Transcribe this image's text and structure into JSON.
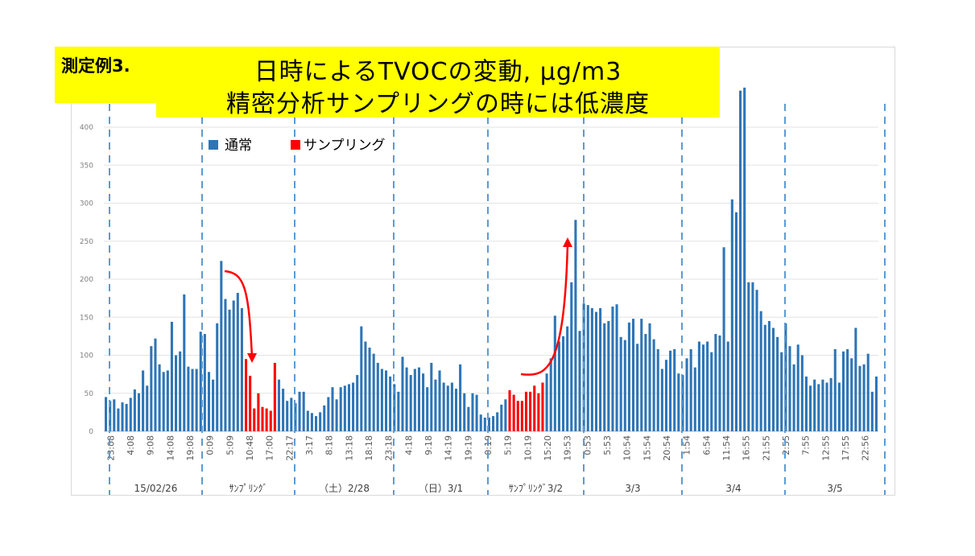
{
  "label": "測定例3.",
  "title_line1": "日時によるTVOCの変動, μg/m3",
  "title_line2": "精密分析サンプリングの時には低濃度",
  "chart_data": {
    "type": "bar",
    "y_ticks": [
      0,
      50,
      100,
      150,
      200,
      250,
      300,
      350,
      400
    ],
    "ylim": [
      0,
      450
    ],
    "grid": true,
    "legend_position": "top-left",
    "series": [
      {
        "name": "通常",
        "color": "#2e75b6"
      },
      {
        "name": "サンプリング",
        "color": "#ff0000"
      }
    ],
    "x_tick_labels": [
      "23:08",
      "4:08",
      "9:08",
      "14:08",
      "19:08",
      "0:09",
      "5:09",
      "10:48",
      "17:00",
      "22:17",
      "3:17",
      "8:18",
      "13:18",
      "18:18",
      "23:18",
      "4:18",
      "9:18",
      "14:19",
      "19:19",
      "0:19",
      "5:19",
      "10:19",
      "15:20",
      "19:53",
      "0:53",
      "5:53",
      "10:54",
      "15:54",
      "20:54",
      "1:54",
      "6:54",
      "11:54",
      "16:55",
      "21:55",
      "2:55",
      "7:55",
      "12:55",
      "17:55",
      "22:56"
    ],
    "groups": [
      {
        "label": "15/02/26"
      },
      {
        "label": "ｻﾝﾌﾟﾘﾝｸﾞ"
      },
      {
        "label": "（土）2/28"
      },
      {
        "label": "（日）3/1"
      },
      {
        "label": "ｻﾝﾌﾟﾘﾝｸﾞ3/2"
      },
      {
        "label": "3/3"
      },
      {
        "label": "3/4"
      },
      {
        "label": "3/5"
      }
    ],
    "values": [
      45,
      40,
      42,
      30,
      38,
      36,
      44,
      55,
      50,
      80,
      60,
      112,
      122,
      88,
      78,
      80,
      144,
      100,
      105,
      180,
      85,
      82,
      82,
      131,
      128,
      78,
      68,
      142,
      224,
      174,
      160,
      172,
      182,
      162,
      95,
      73,
      30,
      50,
      32,
      30,
      27,
      90,
      68,
      56,
      40,
      44,
      37,
      52,
      52,
      27,
      24,
      20,
      25,
      34,
      45,
      58,
      42,
      58,
      60,
      62,
      64,
      74,
      138,
      118,
      110,
      102,
      90,
      82,
      80,
      72,
      62,
      52,
      98,
      84,
      74,
      82,
      84,
      76,
      58,
      90,
      68,
      80,
      64,
      60,
      64,
      56,
      88,
      50,
      32,
      50,
      48,
      22,
      18,
      18,
      20,
      25,
      35,
      42,
      54,
      48,
      40,
      40,
      52,
      52,
      60,
      50,
      64,
      76,
      96,
      152,
      118,
      125,
      138,
      196,
      278,
      132,
      168,
      166,
      162,
      157,
      162,
      142,
      145,
      164,
      167,
      124,
      120,
      143,
      148,
      115,
      148,
      128,
      142,
      121,
      108,
      82,
      94,
      106,
      108,
      76,
      74,
      96,
      108,
      84,
      118,
      114,
      118,
      104,
      128,
      126,
      242,
      118,
      305,
      288,
      448,
      452,
      196,
      196,
      186,
      158,
      140,
      145,
      136,
      124,
      104,
      142,
      112,
      88,
      114,
      100,
      72,
      60,
      68,
      62,
      68,
      64,
      70,
      108,
      64,
      105,
      108,
      96,
      136,
      86,
      88,
      102,
      52,
      72
    ],
    "sampling_indices": [
      34,
      35,
      36,
      37,
      38,
      39,
      40,
      41,
      98,
      99,
      100,
      101,
      102,
      103,
      104,
      105,
      106
    ]
  }
}
